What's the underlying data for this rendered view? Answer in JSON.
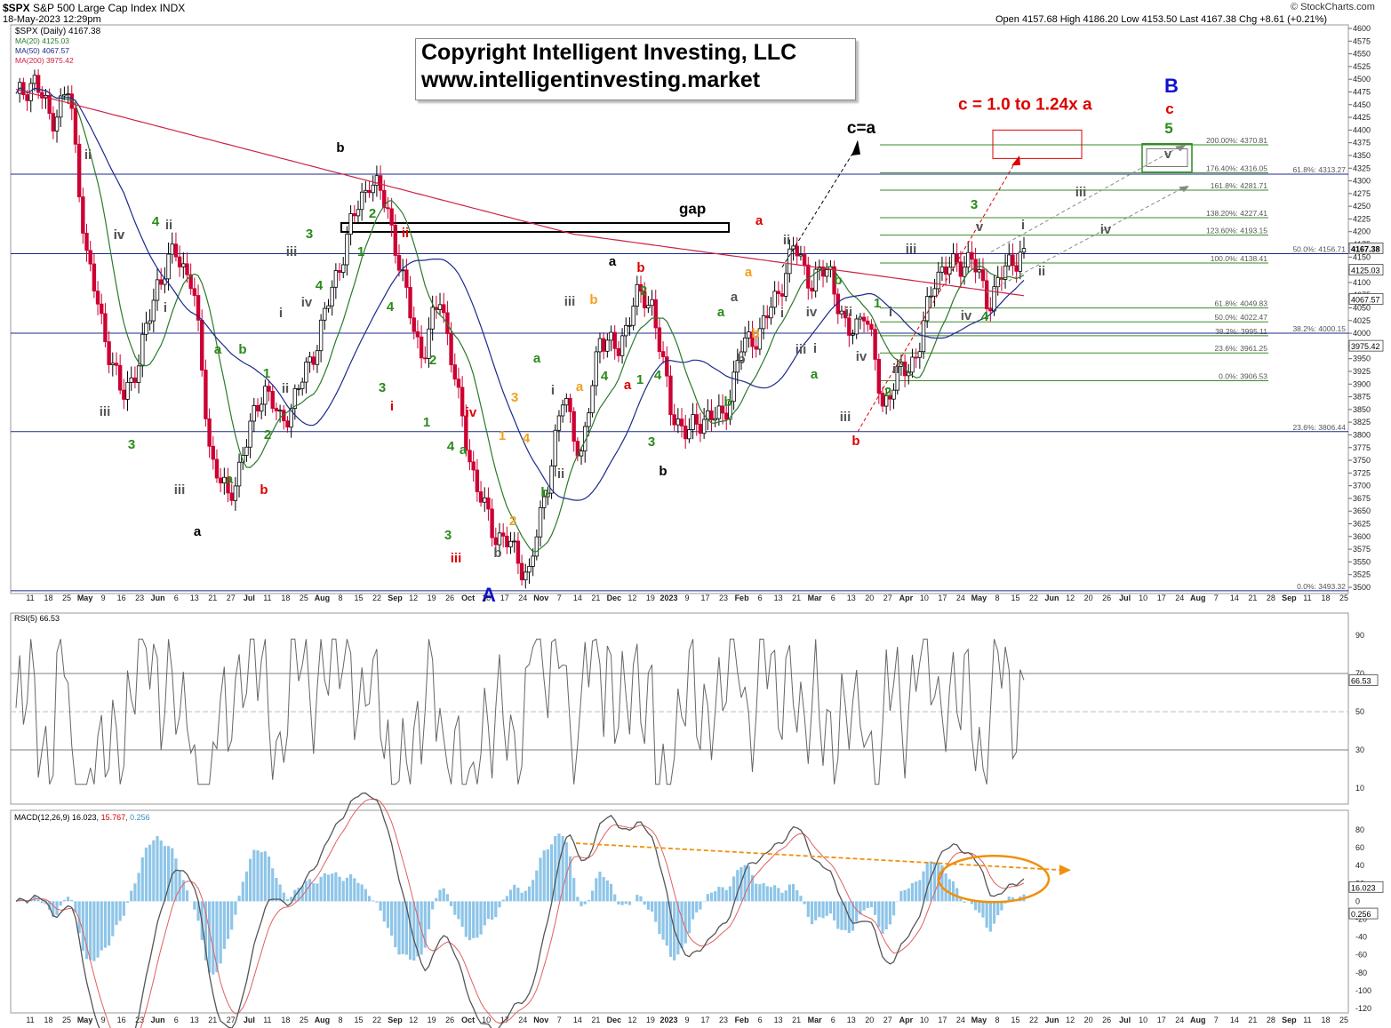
{
  "header": {
    "symbol": "$SPX",
    "name": "S&P 500 Large Cap Index",
    "exchange": "INDX",
    "date": "18-May-2023 12:29pm",
    "quote": "Open 4157.68  High 4186.20  Low 4153.50  Last 4167.38  Chg +8.61 (+0.21%)",
    "credit": "© StockCharts.com"
  },
  "legend": {
    "main": "$SPX (Daily) 4167.38",
    "ma20": "MA(20) 4125.03",
    "ma50": "MA(50) 4067.57",
    "ma200": "MA(200) 3975.42"
  },
  "copyright": {
    "line1": "Copyright Intelligent Investing, LLC",
    "line2": "www.intelligentinvesting.market"
  },
  "colors": {
    "up_candle": "#000000",
    "down_candle": "#cc0033",
    "ma20": "#2a7a2a",
    "ma50": "#1c2a8c",
    "ma200": "#cc2244",
    "fib": "#3a8a2a",
    "wave_green": "#2a8a1a",
    "wave_red": "#dd0000",
    "wave_orange": "#f0a020",
    "wave_grey": "#555555",
    "wave_blue": "#1010cc",
    "macd_hist": "#8ec5e8",
    "macd_signal_trend": "#f0900c"
  },
  "chart_data": [
    {
      "type": "candlestick",
      "title": "$SPX (Daily) 4167.38",
      "y_ticks": [
        3500,
        3525,
        3550,
        3575,
        3600,
        3625,
        3650,
        3675,
        3700,
        3725,
        3750,
        3775,
        3800,
        3825,
        3850,
        3875,
        3900,
        3925,
        3950,
        3975,
        4000,
        4025,
        4050,
        4075,
        4100,
        4125,
        4150,
        4175,
        4200,
        4225,
        4250,
        4275,
        4300,
        4325,
        4350,
        4375,
        4400,
        4425,
        4450,
        4475,
        4500,
        4525,
        4550,
        4575,
        4600
      ],
      "ylim": [
        3485,
        4605
      ],
      "x_axis_labels": [
        "11",
        "18",
        "25",
        "May",
        "9",
        "16",
        "23",
        "Jun",
        "6",
        "13",
        "21",
        "27",
        "Jul",
        "11",
        "18",
        "25",
        "Aug",
        "8",
        "15",
        "22",
        "Sep",
        "12",
        "19",
        "26",
        "Oct",
        "10",
        "17",
        "24",
        "Nov",
        "7",
        "14",
        "21",
        "Dec",
        "12",
        "19",
        "2023",
        "9",
        "17",
        "23",
        "Feb",
        "6",
        "13",
        "21",
        "Mar",
        "6",
        "13",
        "20",
        "27",
        "Apr",
        "10",
        "17",
        "24",
        "May",
        "8",
        "15",
        "22",
        "Jun",
        "12",
        "20",
        "26",
        "Jul",
        "10",
        "17",
        "24",
        "Aug",
        "7",
        "14",
        "21",
        "28",
        "Sep",
        "11",
        "18",
        "25"
      ],
      "price_path": [
        [
          "Apr 2022",
          4460
        ],
        [
          "Apr 2022",
          4500
        ],
        [
          "Apr 2022",
          4420
        ],
        [
          "Apr 2022",
          4480
        ],
        [
          "May 2022",
          4150
        ],
        [
          "May 2022",
          4000
        ],
        [
          "May 2022",
          3870
        ],
        [
          "May 2022",
          3950
        ],
        [
          "May 2022",
          4100
        ],
        [
          "Jun 2022",
          4160
        ],
        [
          "Jun 2022",
          4100
        ],
        [
          "Jun 2022",
          3760
        ],
        [
          "Jun 2022",
          3670
        ],
        [
          "Jun 2022",
          3780
        ],
        [
          "Jun 2022",
          3900
        ],
        [
          "Jul 2022",
          3820
        ],
        [
          "Jul 2022",
          3890
        ],
        [
          "Jul 2022",
          3980
        ],
        [
          "Jul 2022",
          4100
        ],
        [
          "Aug 2022",
          4220
        ],
        [
          "Aug 2022",
          4305
        ],
        [
          "Aug 2022",
          4250
        ],
        [
          "Aug 2022",
          4080
        ],
        [
          "Sep 2022",
          3950
        ],
        [
          "Sep 2022",
          4080
        ],
        [
          "Sep 2022",
          3870
        ],
        [
          "Sep 2022",
          3700
        ],
        [
          "Sep 2022",
          3610
        ],
        [
          "Oct 2022",
          3580
        ],
        [
          "Oct 2022",
          3520
        ],
        [
          "Oct 2022",
          3700
        ],
        [
          "Oct 2022",
          3880
        ],
        [
          "Nov 2022",
          3750
        ],
        [
          "Nov 2022",
          4000
        ],
        [
          "Nov 2022",
          3960
        ],
        [
          "Nov 2022",
          4070
        ],
        [
          "Dec 2022",
          4060
        ],
        [
          "Dec 2022",
          3850
        ],
        [
          "Dec 2022",
          3800
        ],
        [
          "Dec 2022",
          3840
        ],
        [
          "Jan 2023",
          3830
        ],
        [
          "Jan 2023",
          3970
        ],
        [
          "Jan 2023",
          4000
        ],
        [
          "Jan 2023",
          4070
        ],
        [
          "Feb 2023",
          4170
        ],
        [
          "Feb 2023",
          4100
        ],
        [
          "Feb 2023",
          4130
        ],
        [
          "Feb 2023",
          3990
        ],
        [
          "Mar 2023",
          4050
        ],
        [
          "Mar 2023",
          3860
        ],
        [
          "Mar 2023",
          3920
        ],
        [
          "Mar 2023",
          3960
        ],
        [
          "Apr 2023",
          4120
        ],
        [
          "Apr 2023",
          4130
        ],
        [
          "Apr 2023",
          4150
        ],
        [
          "May 2023",
          4060
        ],
        [
          "May 2023",
          4130
        ],
        [
          "May 2023",
          4167
        ]
      ],
      "moving_averages": [
        {
          "name": "MA(20)",
          "last": 4125.03
        },
        {
          "name": "MA(50)",
          "last": 4067.57
        },
        {
          "name": "MA(200)",
          "last": 3975.42
        }
      ],
      "right_axis_tags": [
        {
          "value": 4167.38,
          "label": "4167.38"
        },
        {
          "value": 4125.03,
          "label": "4125.03"
        },
        {
          "value": 4067.57,
          "label": "4067.57"
        },
        {
          "value": 3975.42,
          "label": "3975.42"
        }
      ],
      "fib_levels": [
        {
          "price": 4370.81,
          "label": "200.00%: 4370.81"
        },
        {
          "price": 4316.05,
          "label": "176.40%: 4316.05"
        },
        {
          "price": 4281.71,
          "label": "161.8%: 4281.71"
        },
        {
          "price": 4227.41,
          "label": "138.20%: 4227.41"
        },
        {
          "price": 4193.15,
          "label": "123.60%: 4193.15"
        },
        {
          "price": 4138.41,
          "label": "100.0%: 4138.41"
        },
        {
          "price": 4049.83,
          "label": "61.8%: 4049.83"
        },
        {
          "price": 4022.47,
          "label": "50.0%: 4022.47"
        },
        {
          "price": 3995.11,
          "label": "38.2%: 3995.11"
        },
        {
          "price": 3961.25,
          "label": "23.6%: 3961.25"
        },
        {
          "price": 3906.53,
          "label": "0.0%: 3906.53"
        }
      ],
      "blue_levels": [
        {
          "price": 4313.27,
          "label": "61.8%: 4313.27"
        },
        {
          "price": 4156.71,
          "label": "50.0%: 4156.71"
        },
        {
          "price": 4000.15,
          "label": "38.2%: 4000.15"
        },
        {
          "price": 3806.44,
          "label": "23.6%: 3806.44"
        },
        {
          "price": 3493.32,
          "label": "0.0%: 3493.32"
        }
      ],
      "target_annotation": "c = 1.0 to 1.24x a",
      "projection_label": "c=a",
      "gap_label": "gap"
    },
    {
      "type": "line",
      "title": "RSI(5) 66.53",
      "y_ticks": [
        10,
        30,
        50,
        70,
        90
      ],
      "ylim": [
        0,
        100
      ],
      "reference_lines": [
        30,
        50,
        70
      ],
      "last": 66.53
    },
    {
      "type": "line",
      "title": "MACD(12,26,9) 16.023, 15.767, 0.256",
      "series": [
        {
          "name": "MACD(12,26,9)",
          "last": 16.023
        },
        {
          "name": "Signal",
          "last": 15.767
        },
        {
          "name": "Histogram",
          "last": 0.256
        }
      ],
      "y_ticks": [
        80,
        60,
        40,
        20,
        0,
        -20,
        -40,
        -60,
        -80,
        -100,
        -120
      ],
      "ylim": [
        -125,
        95
      ]
    }
  ],
  "rsi_legend": "RSI(5) 66.53",
  "macd_legend": {
    "label": "MACD(12,26,9)",
    "macd": "16.023",
    "signal": "15.767",
    "hist": "0.256"
  },
  "rsi_tag": "66.53",
  "macd_tags": {
    "macd": "16.023",
    "hist": "0.256"
  },
  "wave_labels": [
    {
      "t": "ii",
      "c": "grey"
    },
    {
      "t": "iii",
      "c": "grey"
    },
    {
      "t": "iv",
      "c": "grey"
    },
    {
      "t": "3",
      "c": "green"
    },
    {
      "t": "4",
      "c": "green"
    },
    {
      "t": "ii",
      "c": "grey"
    },
    {
      "t": "iv",
      "c": "grey"
    },
    {
      "t": "i",
      "c": "grey"
    },
    {
      "t": "iii",
      "c": "grey"
    },
    {
      "t": "a",
      "c": "black"
    },
    {
      "t": "a",
      "c": "green"
    },
    {
      "t": "b",
      "c": "green"
    },
    {
      "t": "a",
      "c": "green"
    },
    {
      "t": "b",
      "c": "red"
    },
    {
      "t": "1",
      "c": "green"
    },
    {
      "t": "2",
      "c": "green"
    },
    {
      "t": "ii",
      "c": "grey"
    },
    {
      "t": "i",
      "c": "grey"
    },
    {
      "t": "iii",
      "c": "grey"
    },
    {
      "t": "3",
      "c": "green"
    },
    {
      "t": "4",
      "c": "green"
    },
    {
      "t": "iv",
      "c": "grey"
    },
    {
      "t": "b",
      "c": "black"
    },
    {
      "t": "2",
      "c": "green"
    },
    {
      "t": "1",
      "c": "green"
    },
    {
      "t": "ii",
      "c": "red"
    },
    {
      "t": "4",
      "c": "green"
    },
    {
      "t": "3",
      "c": "green"
    },
    {
      "t": "i",
      "c": "red"
    },
    {
      "t": "2",
      "c": "green"
    },
    {
      "t": "1",
      "c": "green"
    },
    {
      "t": "iv",
      "c": "red"
    },
    {
      "t": "4",
      "c": "green"
    },
    {
      "t": "3",
      "c": "green"
    },
    {
      "t": "iii",
      "c": "red"
    },
    {
      "t": "a",
      "c": "green"
    },
    {
      "t": "A",
      "c": "blue"
    },
    {
      "t": "b",
      "c": "grey"
    },
    {
      "t": "3",
      "c": "orange"
    },
    {
      "t": "1",
      "c": "orange"
    },
    {
      "t": "4",
      "c": "orange"
    },
    {
      "t": "2",
      "c": "orange"
    },
    {
      "t": "a",
      "c": "green"
    },
    {
      "t": "b",
      "c": "green"
    },
    {
      "t": "i",
      "c": "grey"
    },
    {
      "t": "ii",
      "c": "grey"
    },
    {
      "t": "iii",
      "c": "grey"
    },
    {
      "t": "b",
      "c": "orange"
    },
    {
      "t": "a",
      "c": "orange"
    },
    {
      "t": "4",
      "c": "green"
    },
    {
      "t": "a",
      "c": "black"
    },
    {
      "t": "b",
      "c": "red"
    },
    {
      "t": "2",
      "c": "green"
    },
    {
      "t": "1",
      "c": "green"
    },
    {
      "t": "a",
      "c": "red"
    },
    {
      "t": "4",
      "c": "green"
    },
    {
      "t": "3",
      "c": "green"
    },
    {
      "t": "b",
      "c": "black"
    },
    {
      "t": "c=a",
      "c": "black"
    },
    {
      "t": "a",
      "c": "red"
    },
    {
      "t": "ii",
      "c": "grey"
    },
    {
      "t": "a",
      "c": "orange"
    },
    {
      "t": "a",
      "c": "grey"
    },
    {
      "t": "b",
      "c": "orange"
    },
    {
      "t": "b",
      "c": "grey"
    },
    {
      "t": "a",
      "c": "green"
    },
    {
      "t": "b",
      "c": "green"
    },
    {
      "t": "i",
      "c": "grey"
    },
    {
      "t": "iii",
      "c": "grey"
    },
    {
      "t": "iv",
      "c": "grey"
    },
    {
      "t": "i",
      "c": "grey"
    },
    {
      "t": "a",
      "c": "green"
    },
    {
      "t": "b",
      "c": "green"
    },
    {
      "t": "ii",
      "c": "grey"
    },
    {
      "t": "iv",
      "c": "grey"
    },
    {
      "t": "iii",
      "c": "grey"
    },
    {
      "t": "b",
      "c": "red"
    },
    {
      "t": "1",
      "c": "green"
    },
    {
      "t": "2",
      "c": "green"
    },
    {
      "t": "i",
      "c": "grey"
    },
    {
      "t": "ii",
      "c": "grey"
    },
    {
      "t": "iii",
      "c": "grey"
    },
    {
      "t": "3",
      "c": "green"
    },
    {
      "t": "v",
      "c": "grey"
    },
    {
      "t": "iv",
      "c": "grey"
    },
    {
      "t": "4",
      "c": "green"
    },
    {
      "t": "i",
      "c": "grey"
    },
    {
      "t": "ii",
      "c": "grey"
    },
    {
      "t": "iii",
      "c": "grey"
    },
    {
      "t": "iv",
      "c": "grey"
    },
    {
      "t": "v",
      "c": "grey"
    },
    {
      "t": "B",
      "c": "blue"
    },
    {
      "t": "c",
      "c": "red"
    },
    {
      "t": "5",
      "c": "green"
    }
  ]
}
